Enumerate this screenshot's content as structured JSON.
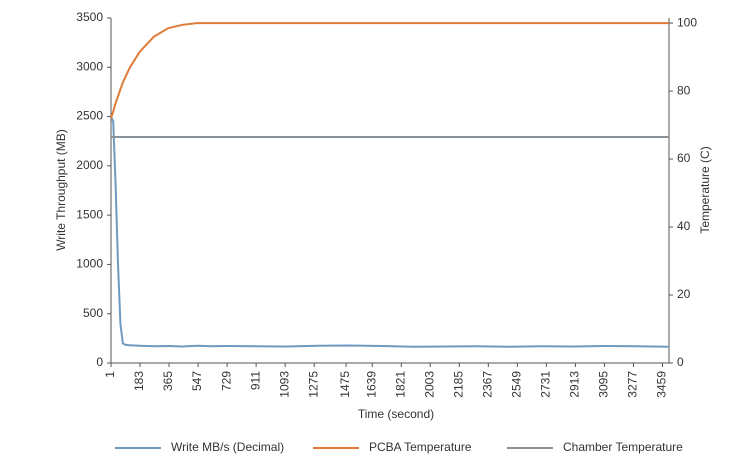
{
  "chart_data": {
    "type": "line",
    "x_label": "Time (second)",
    "y_label": "Write Throughput (MB)",
    "y2_label": "Temperature (C)",
    "x": [
      1,
      15,
      30,
      45,
      60,
      75,
      90,
      120,
      180,
      270,
      360,
      450,
      540,
      630,
      720,
      900,
      1100,
      1300,
      1500,
      1700,
      1900,
      2100,
      2300,
      2500,
      2700,
      2900,
      3100,
      3300,
      3500
    ],
    "series": [
      {
        "name": "Write MB/s (Decimal)",
        "color": "#6e9ac0",
        "values": [
          2500,
          2450,
          1800,
          1000,
          400,
          200,
          185,
          180,
          175,
          170,
          172,
          168,
          175,
          170,
          172,
          170,
          168,
          175,
          178,
          172,
          165,
          168,
          170,
          165,
          170,
          168,
          172,
          170,
          165
        ]
      },
      {
        "name": "PCBA Temperature",
        "color": "#e07b39",
        "axis": "y2",
        "values": [
          72,
          74,
          76.5,
          78.5,
          80.5,
          82.5,
          84,
          87,
          91.5,
          96,
          98.5,
          99.5,
          100,
          100,
          100,
          100,
          100,
          100,
          100,
          100,
          100,
          100,
          100,
          100,
          100,
          100,
          100,
          100,
          100
        ]
      },
      {
        "name": "Chamber Temperature",
        "color": "#8a9297",
        "axis": "y2",
        "values": [
          66.5,
          66.5,
          66.5,
          66.5,
          66.5,
          66.5,
          66.5,
          66.5,
          66.5,
          66.5,
          66.5,
          66.5,
          66.5,
          66.5,
          66.5,
          66.5,
          66.5,
          66.5,
          66.5,
          66.5,
          66.5,
          66.5,
          66.5,
          66.5,
          66.5,
          66.5,
          66.5,
          66.5,
          66.5
        ]
      }
    ],
    "xlim": [
      1,
      3500
    ],
    "xticks": [
      1,
      183,
      365,
      547,
      729,
      911,
      1093,
      1275,
      1475,
      1639,
      1821,
      2003,
      2185,
      2367,
      2549,
      2731,
      2913,
      3095,
      3277,
      3459
    ],
    "ylim": [
      0,
      3500
    ],
    "yticks": [
      0,
      500,
      1000,
      1500,
      2000,
      2500,
      3000,
      3500
    ],
    "y2lim": [
      0,
      101.5
    ],
    "y2ticks": [
      0,
      20,
      40,
      60,
      80,
      100
    ],
    "legend": "bottom"
  }
}
